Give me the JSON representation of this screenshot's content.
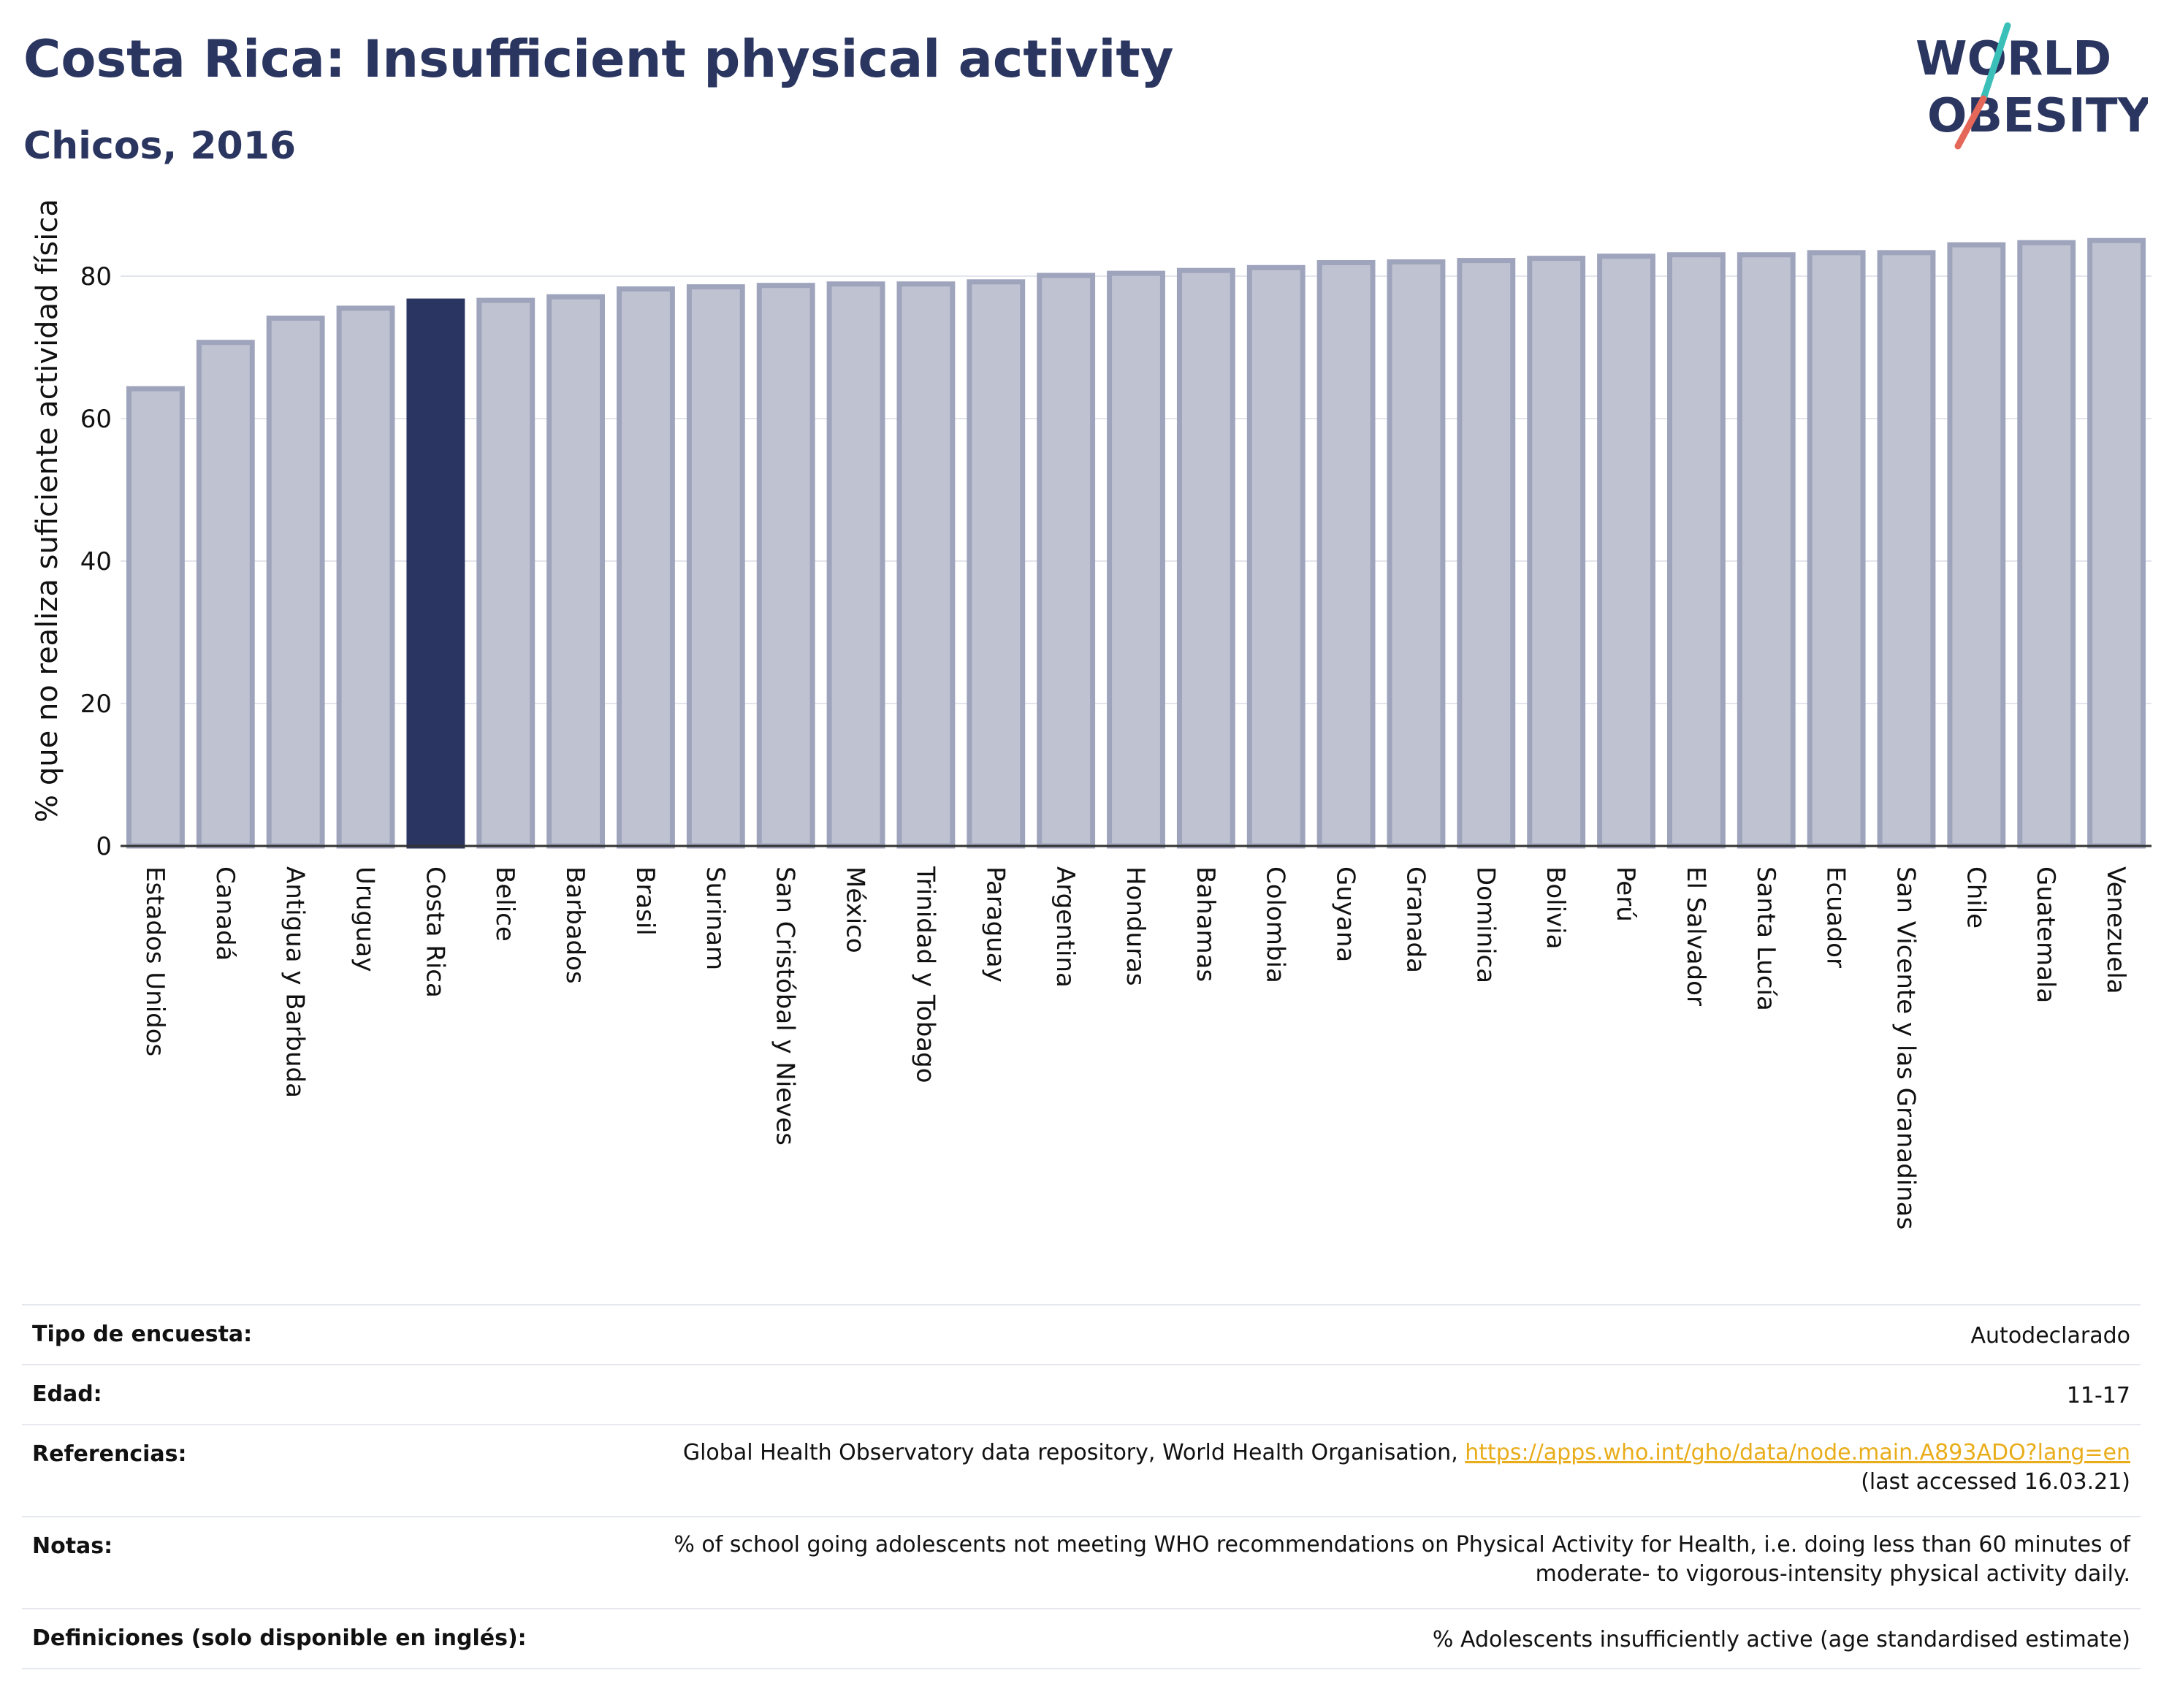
{
  "header": {
    "title": "Costa Rica: Insufficient physical activity",
    "subtitle": "Chicos, 2016",
    "logo_line1": "WORLD",
    "logo_line2": "OBESITY"
  },
  "colors": {
    "highlight": "#2b3561",
    "bar_fill": "#bfc2d0",
    "bar_stroke": "#9fa4bd",
    "title": "#2a3560",
    "link": "#e9ad1b",
    "logo_teal": "#3bbfb9",
    "logo_red": "#e5675a"
  },
  "chart_data": {
    "type": "bar",
    "ylabel": "% que no realiza suficiente actividad física",
    "ylim": [
      0,
      88
    ],
    "yticks": [
      0,
      20,
      40,
      60,
      80
    ],
    "grid": true,
    "highlight": "Costa Rica",
    "categories": [
      "Estados Unidos",
      "Canadá",
      "Antigua y Barbuda",
      "Uruguay",
      "Costa Rica",
      "Belice",
      "Barbados",
      "Brasil",
      "Surinam",
      "San Cristóbal y Nieves",
      "México",
      "Trinidad y Tobago",
      "Paraguay",
      "Argentina",
      "Honduras",
      "Bahamas",
      "Colombia",
      "Guyana",
      "Granada",
      "Dominica",
      "Bolivia",
      "Perú",
      "El Salvador",
      "Santa Lucía",
      "Ecuador",
      "San Vicente y las Granadinas",
      "Chile",
      "Guatemala",
      "Venezuela"
    ],
    "values": [
      64.2,
      70.7,
      74.1,
      75.5,
      76.5,
      76.6,
      77.1,
      78.2,
      78.5,
      78.7,
      78.9,
      78.9,
      79.2,
      80.1,
      80.4,
      80.8,
      81.2,
      81.9,
      82.0,
      82.2,
      82.5,
      82.8,
      83.0,
      83.0,
      83.3,
      83.3,
      84.4,
      84.7,
      85.0
    ]
  },
  "table": {
    "rows": [
      {
        "label": "Tipo de encuesta:",
        "value": "Autodeclarado"
      },
      {
        "label": "Edad:",
        "value": "11-17"
      },
      {
        "label": "Referencias:",
        "value": "Global Health Observatory data repository, World Health Organisation, ",
        "link": "https://apps.who.int/gho/data/node.main.A893ADO?lang=en",
        "value2": "(last accessed 16.03.21)"
      },
      {
        "label": "Notas:",
        "value": "% of school going adolescents not meeting WHO recommendations on Physical Activity for Health, i.e. doing less than 60 minutes of",
        "value2": "moderate- to vigorous-intensity physical activity daily."
      },
      {
        "label": "Definiciones (solo disponible en inglés):",
        "value": "% Adolescents insufficiently active (age standardised estimate)"
      }
    ]
  }
}
